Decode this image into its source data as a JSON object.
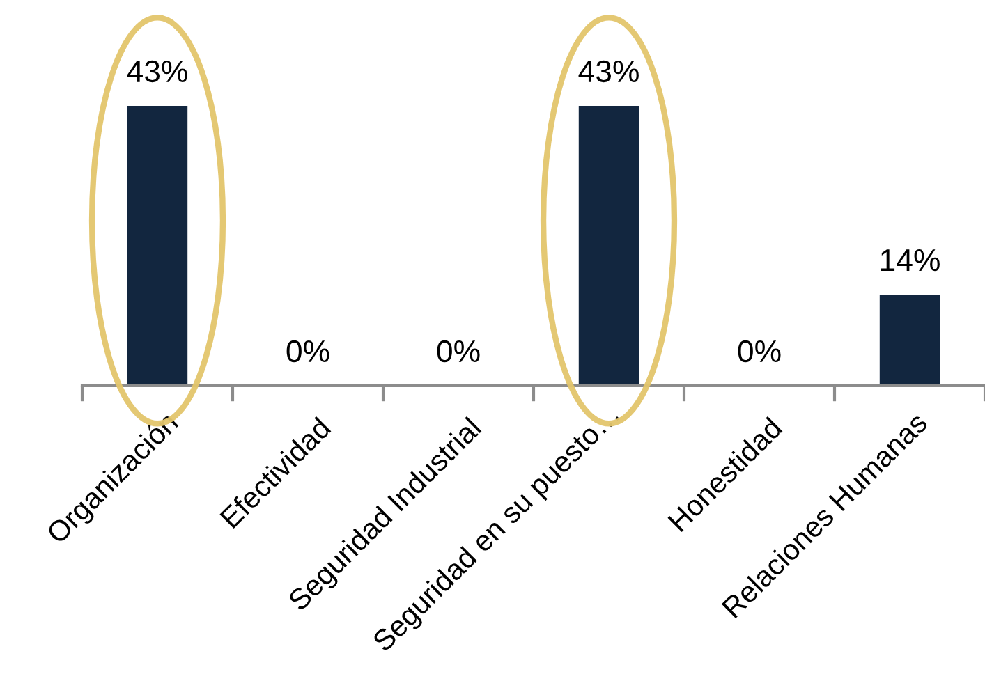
{
  "chart_data": {
    "type": "bar",
    "categories": [
      "Organización",
      "Efectividad",
      "Seguridad Industrial",
      "Seguridad en su puesto…",
      "Honestidad",
      "Relaciones Humanas"
    ],
    "values": [
      43,
      0,
      0,
      43,
      0,
      14
    ],
    "value_labels": [
      "43%",
      "0%",
      "0%",
      "43%",
      "0%",
      "14%"
    ],
    "color": "#12263f"
  }
}
